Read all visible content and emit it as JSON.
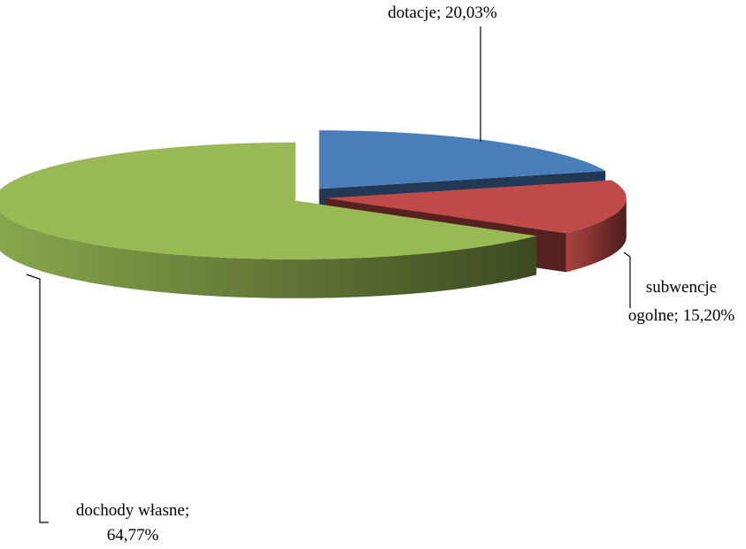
{
  "chart_data": {
    "type": "pie3d",
    "categories": [
      "dotacje",
      "subwencje ogolne",
      "dochody własne"
    ],
    "values": [
      20.03,
      15.2,
      64.77
    ],
    "value_labels": [
      [
        "dotacje; 20,03%"
      ],
      [
        "subwencje",
        "ogolne; 15,20%"
      ],
      [
        "dochody własne;",
        "64,77%"
      ]
    ],
    "colors": [
      "#4a7ebb",
      "#be4b48",
      "#98b954"
    ]
  }
}
